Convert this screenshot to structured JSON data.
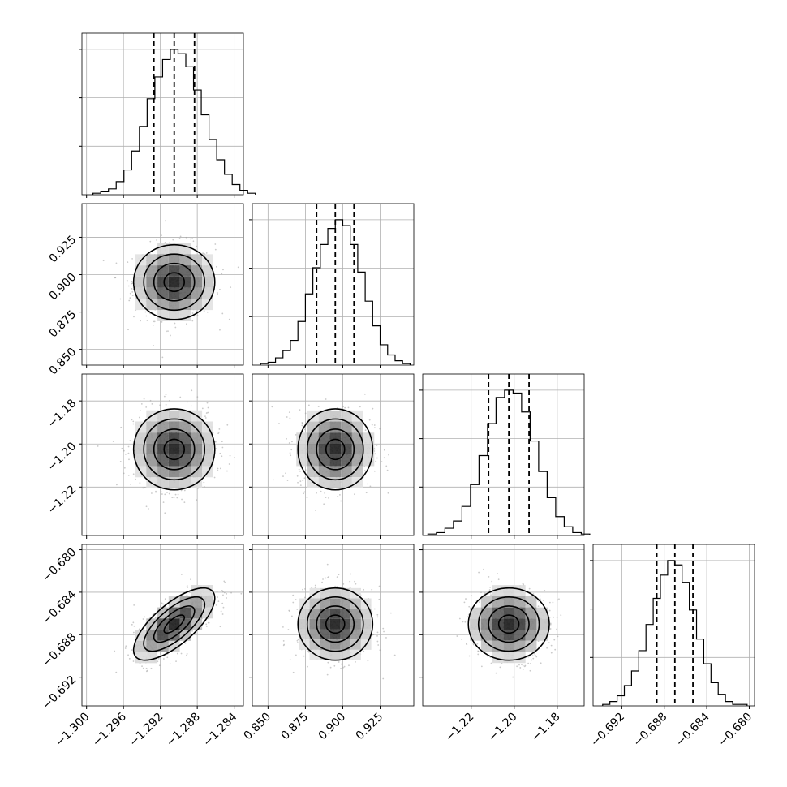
{
  "chart_data": {
    "type": "corner",
    "grid": true,
    "colors": {
      "line": "#000000",
      "grid": "#b0b0b0",
      "scatter": "#9e9e9e"
    },
    "parameters": [
      {
        "mean": -1.2905,
        "std": 0.0022,
        "range": [
          -1.3005,
          -1.283
        ],
        "ticks": [
          -1.3,
          -1.296,
          -1.292,
          -1.288,
          -1.284
        ],
        "tick_labels": [
          "−1.300",
          "−1.296",
          "−1.292",
          "−1.288",
          "−1.284"
        ],
        "quantiles": [
          -1.2927,
          -1.2905,
          -1.2883
        ],
        "hist": [
          0.01,
          0.02,
          0.04,
          0.09,
          0.17,
          0.3,
          0.47,
          0.66,
          0.81,
          0.93,
          1.0,
          0.97,
          0.88,
          0.72,
          0.55,
          0.38,
          0.24,
          0.14,
          0.07,
          0.03,
          0.01
        ]
      },
      {
        "mean": 0.895,
        "std": 0.0125,
        "range": [
          0.8395,
          0.9475
        ],
        "ticks": [
          0.85,
          0.875,
          0.9,
          0.925
        ],
        "tick_labels": [
          "0.850",
          "0.875",
          "0.900",
          "0.925"
        ],
        "quantiles": [
          0.8825,
          0.895,
          0.9075
        ],
        "hist": [
          0.01,
          0.02,
          0.05,
          0.1,
          0.17,
          0.3,
          0.49,
          0.67,
          0.83,
          0.94,
          1.0,
          0.96,
          0.83,
          0.64,
          0.44,
          0.27,
          0.14,
          0.07,
          0.03,
          0.01
        ]
      },
      {
        "mean": -1.2025,
        "std": 0.0094,
        "range": [
          -1.2425,
          -1.1675
        ],
        "ticks": [
          -1.22,
          -1.2,
          -1.18
        ],
        "tick_labels": [
          "−1.22",
          "−1.20",
          "−1.18"
        ],
        "quantiles": [
          -1.2119,
          -1.2025,
          -1.1931
        ],
        "hist": [
          0.01,
          0.02,
          0.05,
          0.1,
          0.2,
          0.35,
          0.55,
          0.77,
          0.95,
          1.0,
          0.98,
          0.85,
          0.65,
          0.44,
          0.26,
          0.13,
          0.06,
          0.02,
          0.01
        ]
      },
      {
        "mean": -0.687,
        "std": 0.0017,
        "range": [
          -0.6947,
          -0.6795
        ],
        "ticks": [
          -0.692,
          -0.688,
          -0.684,
          -0.68
        ],
        "tick_labels": [
          "−0.692",
          "−0.688",
          "−0.684",
          "−0.680"
        ],
        "quantiles": [
          -0.6887,
          -0.687,
          -0.6853
        ],
        "hist": [
          0.01,
          0.03,
          0.07,
          0.14,
          0.24,
          0.38,
          0.56,
          0.74,
          0.9,
          1.0,
          0.97,
          0.85,
          0.66,
          0.46,
          0.29,
          0.16,
          0.08,
          0.03,
          0.01,
          0.01
        ]
      }
    ],
    "correlations": {
      "3,0": 0.72,
      "3,1": 0.0,
      "3,2": 0.0,
      "1,0": 0.0,
      "2,0": 0.0,
      "2,1": 0.0
    }
  }
}
